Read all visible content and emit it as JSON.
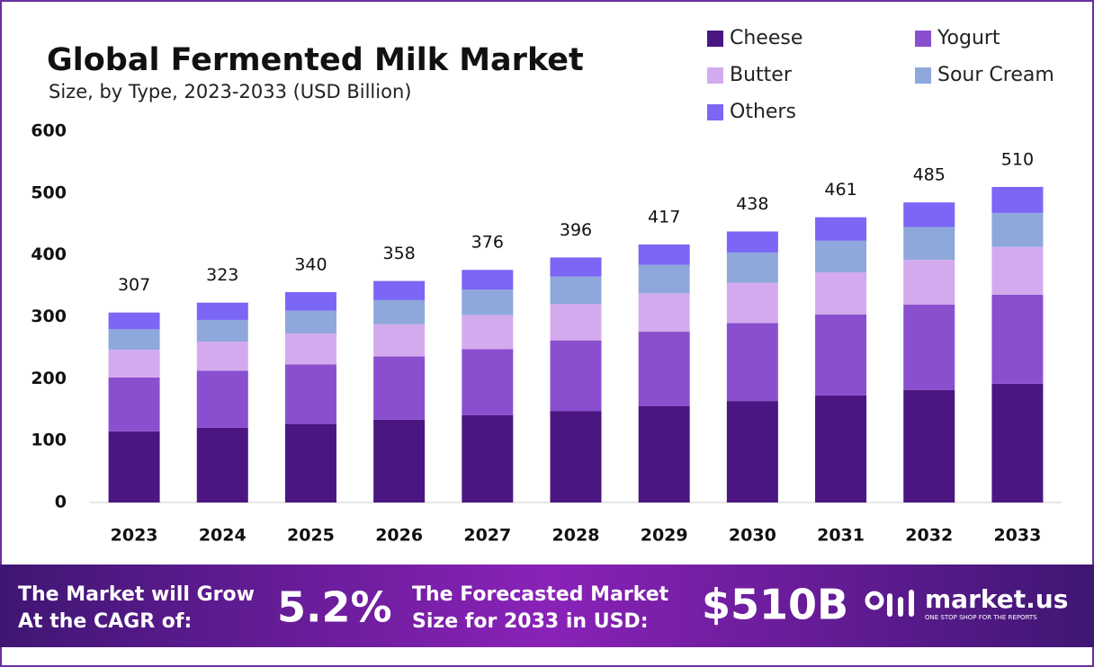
{
  "chart_data": {
    "type": "stacked_bar",
    "title": "Global Fermented Milk Market",
    "subtitle": "Size, by Type, 2023-2033 (USD Billion)",
    "categories": [
      "2023",
      "2024",
      "2025",
      "2026",
      "2027",
      "2028",
      "2029",
      "2030",
      "2031",
      "2032",
      "2033"
    ],
    "series": [
      {
        "name": "Cheese",
        "color": "#4b1682",
        "values": [
          115,
          121,
          127,
          134,
          141,
          148,
          156,
          164,
          173,
          182,
          192
        ]
      },
      {
        "name": "Yogurt",
        "color": "#8a4fcf",
        "values": [
          87,
          92,
          96,
          102,
          107,
          114,
          120,
          126,
          131,
          138,
          144
        ]
      },
      {
        "name": "Butter",
        "color": "#d4aaee",
        "values": [
          45,
          47,
          50,
          52,
          55,
          59,
          62,
          65,
          68,
          72,
          77
        ]
      },
      {
        "name": "Sour Cream",
        "color": "#8ea8dc",
        "values": [
          33,
          35,
          37,
          39,
          41,
          44,
          46,
          49,
          51,
          53,
          55
        ]
      },
      {
        "name": "Others",
        "color": "#7b66f5",
        "values": [
          27,
          28,
          30,
          31,
          32,
          31,
          33,
          34,
          38,
          40,
          42
        ]
      }
    ],
    "totals": [
      307,
      323,
      340,
      358,
      376,
      396,
      417,
      438,
      461,
      485,
      510
    ],
    "ylim": [
      0,
      600
    ],
    "yticks": [
      0,
      100,
      200,
      300,
      400,
      500,
      600
    ],
    "grid": false,
    "legend": "top-right"
  },
  "footer": {
    "cagr_text": [
      "The Market will Grow",
      "At the CAGR of:"
    ],
    "cagr_value": "5.2%",
    "forecast_text": [
      "The Forecasted Market",
      "Size for 2033 in USD:"
    ],
    "forecast_value": "$510B",
    "brand": "market.us",
    "tagline": "ONE STOP SHOP FOR THE REPORTS"
  }
}
